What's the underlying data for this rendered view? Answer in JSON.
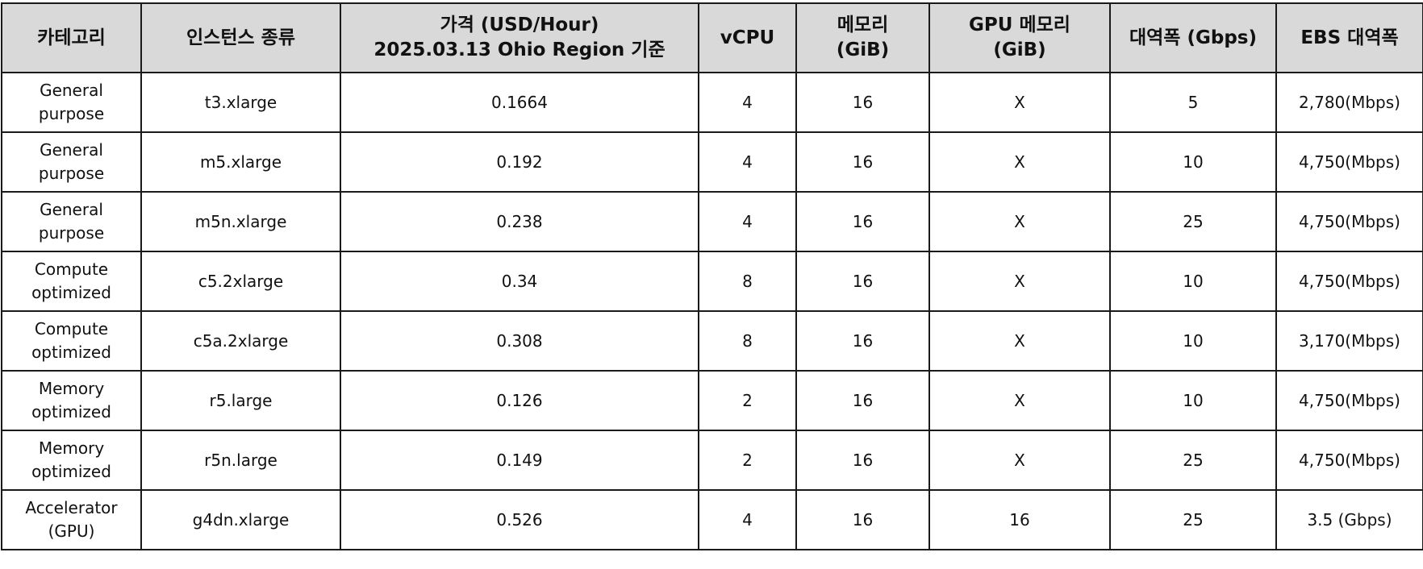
{
  "table": {
    "headers": [
      {
        "lines": [
          "카테고리"
        ]
      },
      {
        "lines": [
          "인스턴스 종류"
        ]
      },
      {
        "lines": [
          "가격 (USD/Hour)",
          "2025.03.13 Ohio Region 기준"
        ]
      },
      {
        "lines": [
          "vCPU"
        ]
      },
      {
        "lines": [
          "메모리",
          "(GiB)"
        ]
      },
      {
        "lines": [
          "GPU 메모리",
          "(GiB)"
        ]
      },
      {
        "lines": [
          "대역폭 (Gbps)"
        ]
      },
      {
        "lines": [
          "EBS 대역폭"
        ]
      }
    ],
    "rows": [
      {
        "category": [
          "General",
          "purpose"
        ],
        "instance": "t3.xlarge",
        "price": "0.1664",
        "vcpu": "4",
        "memory": "16",
        "gpu_memory": "X",
        "bandwidth": "5",
        "ebs": "2,780(Mbps)"
      },
      {
        "category": [
          "General",
          "purpose"
        ],
        "instance": "m5.xlarge",
        "price": "0.192",
        "vcpu": "4",
        "memory": "16",
        "gpu_memory": "X",
        "bandwidth": "10",
        "ebs": "4,750(Mbps)"
      },
      {
        "category": [
          "General",
          "purpose"
        ],
        "instance": "m5n.xlarge",
        "price": "0.238",
        "vcpu": "4",
        "memory": "16",
        "gpu_memory": "X",
        "bandwidth": "25",
        "ebs": "4,750(Mbps)"
      },
      {
        "category": [
          "Compute",
          "optimized"
        ],
        "instance": "c5.2xlarge",
        "price": "0.34",
        "vcpu": "8",
        "memory": "16",
        "gpu_memory": "X",
        "bandwidth": "10",
        "ebs": "4,750(Mbps)"
      },
      {
        "category": [
          "Compute",
          "optimized"
        ],
        "instance": "c5a.2xlarge",
        "price": "0.308",
        "vcpu": "8",
        "memory": "16",
        "gpu_memory": "X",
        "bandwidth": "10",
        "ebs": "3,170(Mbps)"
      },
      {
        "category": [
          "Memory",
          "optimized"
        ],
        "instance": "r5.large",
        "price": "0.126",
        "vcpu": "2",
        "memory": "16",
        "gpu_memory": "X",
        "bandwidth": "10",
        "ebs": "4,750(Mbps)"
      },
      {
        "category": [
          "Memory",
          "optimized"
        ],
        "instance": "r5n.large",
        "price": "0.149",
        "vcpu": "2",
        "memory": "16",
        "gpu_memory": "X",
        "bandwidth": "25",
        "ebs": "4,750(Mbps)"
      },
      {
        "category": [
          "Accelerator",
          "(GPU)"
        ],
        "instance": "g4dn.xlarge",
        "price": "0.526",
        "vcpu": "4",
        "memory": "16",
        "gpu_memory": "16",
        "bandwidth": "25",
        "ebs": "3.5 (Gbps)"
      }
    ]
  },
  "colors": {
    "header_background": "#d9d9d9",
    "border": "#1a1a1a",
    "text": "#111111"
  }
}
